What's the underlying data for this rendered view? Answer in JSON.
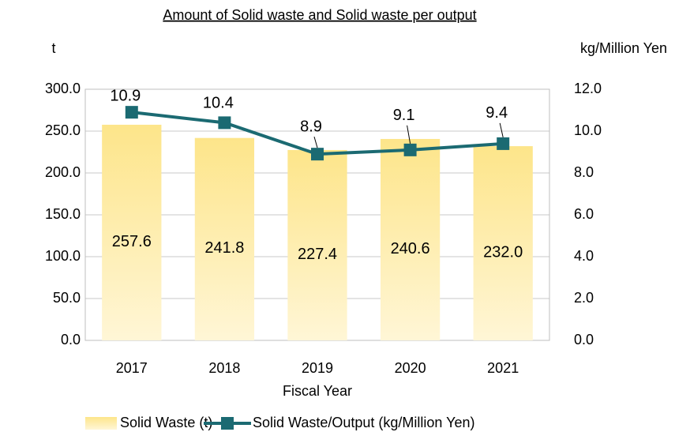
{
  "chart_data": {
    "type": "combo",
    "title": "Amount of Solid waste and Solid waste per output",
    "y_label": "t",
    "y2_label": "kg/Million Yen",
    "x_label": "Fiscal Year",
    "categories": [
      "2017",
      "2018",
      "2019",
      "2020",
      "2021"
    ],
    "series": [
      {
        "name": "Solid Waste (t)",
        "type": "bar",
        "color": "#fde58a",
        "values": [
          257.6,
          241.8,
          227.4,
          240.6,
          232.0
        ],
        "value_labels": [
          "257.6",
          "241.8",
          "227.4",
          "240.6",
          "232.0"
        ]
      },
      {
        "name": "Solid Waste/Output (kg/Million Yen)",
        "type": "line",
        "axis": "y2",
        "color": "#1b6a72",
        "values": [
          10.9,
          10.4,
          8.9,
          9.1,
          9.4
        ]
      }
    ],
    "ylim": [
      0,
      300
    ],
    "yticks": [
      {
        "value": 0,
        "label": "0.0"
      },
      {
        "value": 50,
        "label": "50.0"
      },
      {
        "value": 100,
        "label": "100.0"
      },
      {
        "value": 150,
        "label": "150.0"
      },
      {
        "value": 200,
        "label": "200.0"
      },
      {
        "value": 250,
        "label": "250.0"
      },
      {
        "value": 300,
        "label": "300.0"
      }
    ],
    "y2lim": [
      0,
      12
    ],
    "y2ticks": [
      {
        "value": 0,
        "label": "0.0"
      },
      {
        "value": 2,
        "label": "2.0"
      },
      {
        "value": 4,
        "label": "4.0"
      },
      {
        "value": 6,
        "label": "6.0"
      },
      {
        "value": 8,
        "label": "8.0"
      },
      {
        "value": 10,
        "label": "10.0"
      },
      {
        "value": 12,
        "label": "12.0"
      }
    ],
    "grid": true,
    "legend": "bottom"
  }
}
